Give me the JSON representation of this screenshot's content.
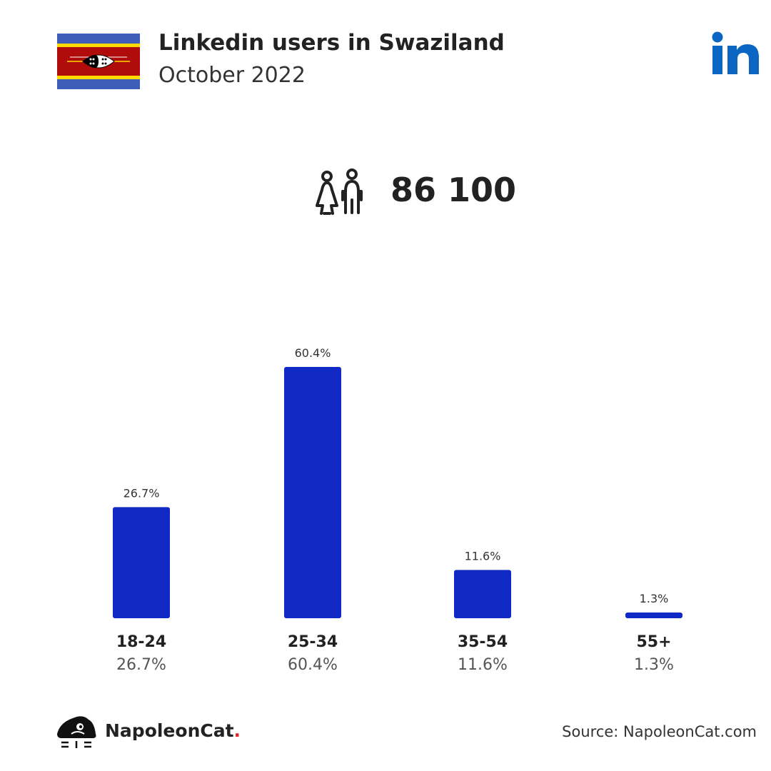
{
  "header": {
    "title": "Linkedin users in Swaziland",
    "subtitle": "October 2022"
  },
  "summary": {
    "total_users": "86 100"
  },
  "footer": {
    "brand": "NapoleonCat",
    "brand_dot": ".",
    "source": "Source: NapoleonCat.com"
  },
  "colors": {
    "bar": "#1029c4",
    "linkedin": "#0a66c2",
    "brand_dot": "#e0252e"
  },
  "icons": {
    "flag": "swaziland-flag-icon",
    "linkedin": "linkedin-logo-icon",
    "people": "people-icon",
    "brand": "napoleoncat-logo-icon"
  },
  "chart_data": {
    "type": "bar",
    "title": "",
    "xlabel": "",
    "ylabel": "",
    "categories": [
      "18-24",
      "25-34",
      "35-54",
      "55+"
    ],
    "values": [
      26.7,
      60.4,
      11.6,
      1.3
    ],
    "value_labels": [
      "26.7%",
      "60.4%",
      "11.6%",
      "1.3%"
    ],
    "unit": "%",
    "ylim": [
      0,
      60.4
    ],
    "grid": false,
    "legend": "none"
  }
}
